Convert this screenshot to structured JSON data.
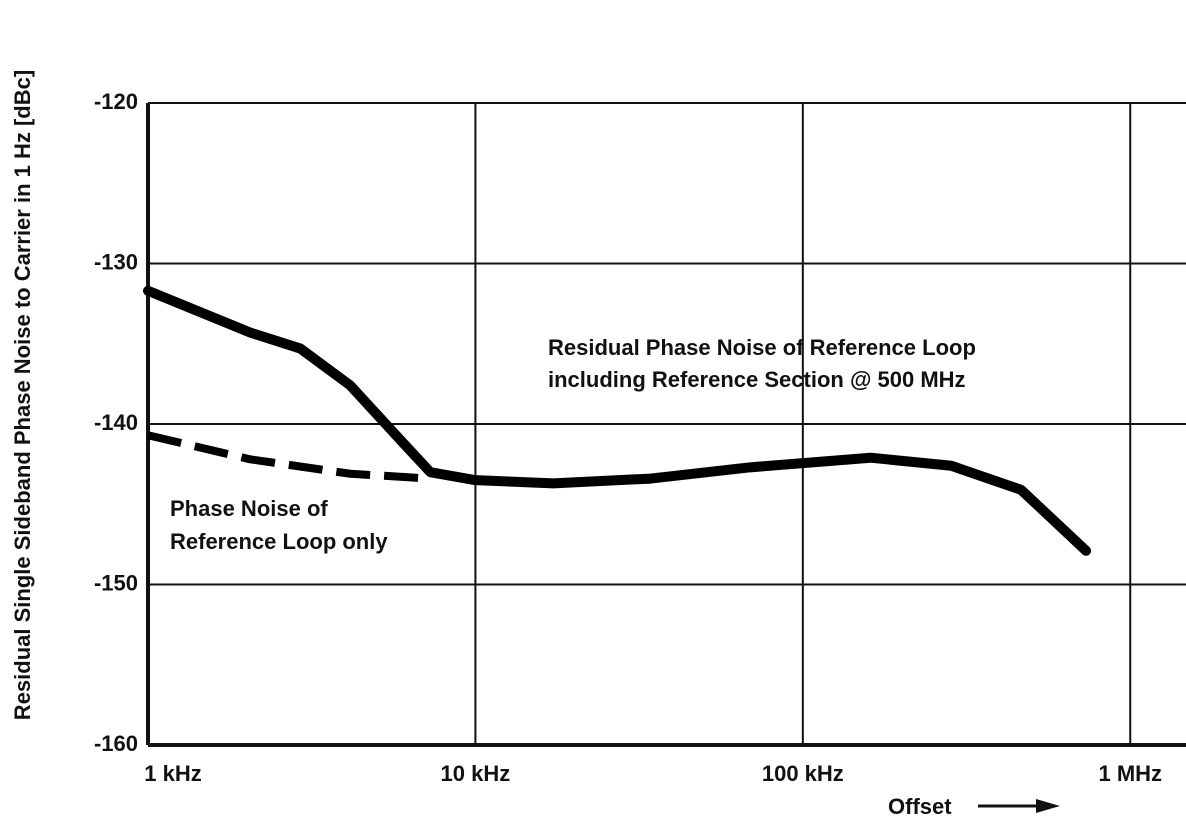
{
  "chart_data": {
    "type": "line",
    "y_label": "Residual Single Sideband Phase Noise to Carrier in 1 Hz [dBc]",
    "x_label": "Offset",
    "log_x": true,
    "grid": true,
    "xlim": [
      1000,
      1480000
    ],
    "ylim": [
      -160,
      -120
    ],
    "xticks": [
      {
        "value": 1000,
        "label": "1 kHz"
      },
      {
        "value": 10000,
        "label": "10 kHz"
      },
      {
        "value": 100000,
        "label": "100 kHz"
      },
      {
        "value": 1000000,
        "label": "1 MHz"
      }
    ],
    "yticks": [
      -160,
      -150,
      -140,
      -130,
      -120
    ],
    "annotations": [
      "Residual Phase Noise of Reference Loop",
      "including Reference Section @ 500 MHz",
      "Phase Noise of",
      "Reference Loop only"
    ],
    "series": [
      {
        "name": "Residual Phase Noise of Reference Loop including Reference Section @ 500 MHz",
        "color": "#000000",
        "style": "solid",
        "x": [
          1000,
          2050,
          2920,
          4150,
          5900,
          7280,
          10000,
          17300,
          34300,
          69000,
          161000,
          284000,
          464000,
          733000
        ],
        "values": [
          -131.7,
          -134.3,
          -135.3,
          -137.6,
          -141,
          -143,
          -143.5,
          -143.7,
          -143.4,
          -142.7,
          -142.1,
          -142.6,
          -144.1,
          -147.9
        ]
      },
      {
        "name": "Phase Noise of Reference Loop only",
        "color": "#000000",
        "style": "dashed",
        "x": [
          1000,
          2050,
          4150,
          7280
        ],
        "values": [
          -140.7,
          -142.2,
          -143.1,
          -143.4
        ]
      }
    ]
  }
}
